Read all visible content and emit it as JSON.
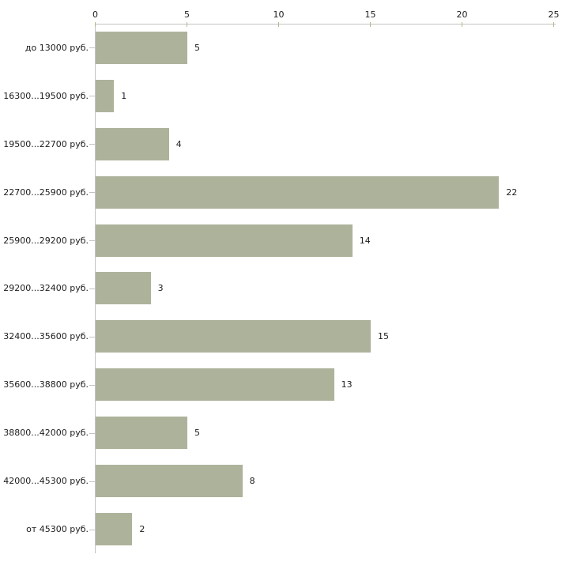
{
  "chart_data": {
    "type": "bar",
    "orientation": "horizontal",
    "title": "",
    "xlabel": "",
    "ylabel": "",
    "categories": [
      "до 13000 руб.",
      "16300...19500 руб.",
      "19500...22700 руб.",
      "22700...25900 руб.",
      "25900...29200 руб.",
      "29200...32400 руб.",
      "32400...35600 руб.",
      "35600...38800 руб.",
      "38800...42000 руб.",
      "42000...45300 руб.",
      "от 45300 руб."
    ],
    "values": [
      5,
      1,
      4,
      22,
      14,
      3,
      15,
      13,
      5,
      8,
      2
    ],
    "xlim": [
      0,
      25
    ],
    "x_ticks": [
      0,
      5,
      10,
      15,
      20,
      25
    ],
    "x_axis_position": "top",
    "grid": false,
    "legend": false,
    "colors": {
      "bar": "#adb39b",
      "axis_line": "#c3c3c3",
      "x_tick_mark": "#b6b886",
      "y_tick_mark": "#c3c3c3",
      "text": "#1c1c1c"
    }
  }
}
